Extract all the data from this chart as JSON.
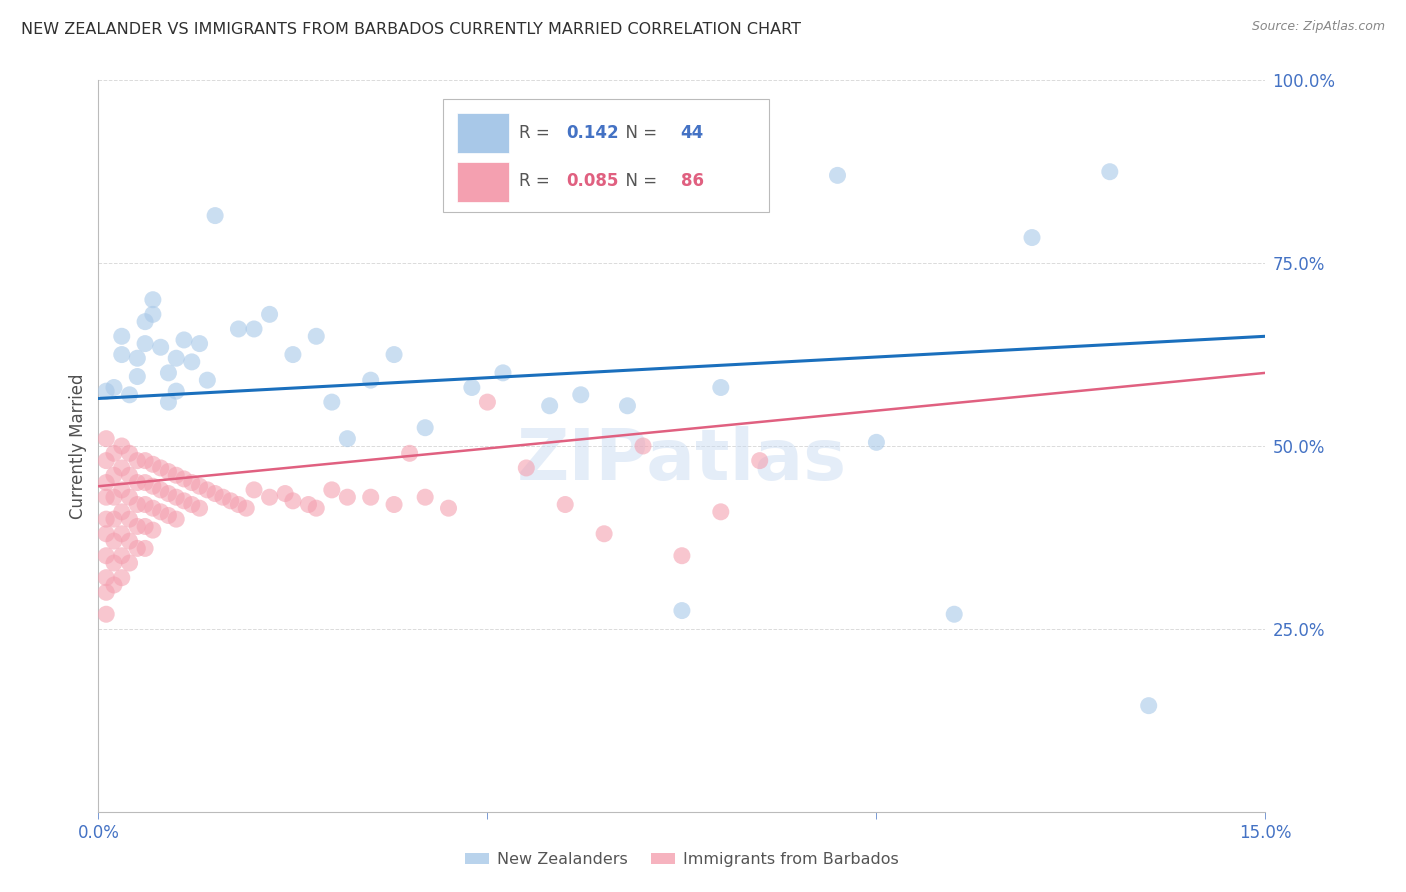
{
  "title": "NEW ZEALANDER VS IMMIGRANTS FROM BARBADOS CURRENTLY MARRIED CORRELATION CHART",
  "source": "Source: ZipAtlas.com",
  "ylabel": "Currently Married",
  "watermark": "ZIPatlas",
  "r_nz": 0.142,
  "n_nz": 44,
  "r_bb": 0.085,
  "n_bb": 86,
  "xmin": 0.0,
  "xmax": 0.15,
  "ymin": 0.0,
  "ymax": 1.0,
  "yticks": [
    0.0,
    0.25,
    0.5,
    0.75,
    1.0
  ],
  "ytick_labels": [
    "",
    "25.0%",
    "50.0%",
    "75.0%",
    "100.0%"
  ],
  "xticks": [
    0.0,
    0.05,
    0.1,
    0.15
  ],
  "xtick_labels": [
    "0.0%",
    "",
    "",
    "15.0%"
  ],
  "color_nz": "#a8c8e8",
  "color_bb": "#f4a0b0",
  "color_trend_nz": "#1a6fbd",
  "color_trend_bb": "#e06080",
  "background_color": "#ffffff",
  "grid_color": "#cccccc",
  "axis_color": "#4472c4",
  "title_color": "#303030",
  "nz_x": [
    0.001,
    0.002,
    0.003,
    0.003,
    0.004,
    0.005,
    0.005,
    0.006,
    0.006,
    0.007,
    0.007,
    0.008,
    0.009,
    0.009,
    0.01,
    0.01,
    0.011,
    0.012,
    0.013,
    0.014,
    0.015,
    0.018,
    0.02,
    0.022,
    0.025,
    0.028,
    0.03,
    0.032,
    0.035,
    0.038,
    0.042,
    0.048,
    0.052,
    0.058,
    0.062,
    0.068,
    0.075,
    0.08,
    0.095,
    0.1,
    0.11,
    0.12,
    0.13,
    0.135
  ],
  "nz_y": [
    0.575,
    0.58,
    0.625,
    0.65,
    0.57,
    0.595,
    0.62,
    0.64,
    0.67,
    0.68,
    0.7,
    0.635,
    0.56,
    0.6,
    0.575,
    0.62,
    0.645,
    0.615,
    0.64,
    0.59,
    0.815,
    0.66,
    0.66,
    0.68,
    0.625,
    0.65,
    0.56,
    0.51,
    0.59,
    0.625,
    0.525,
    0.58,
    0.6,
    0.555,
    0.57,
    0.555,
    0.275,
    0.58,
    0.87,
    0.505,
    0.27,
    0.785,
    0.875,
    0.145
  ],
  "bb_x": [
    0.001,
    0.001,
    0.001,
    0.001,
    0.001,
    0.001,
    0.001,
    0.001,
    0.001,
    0.001,
    0.002,
    0.002,
    0.002,
    0.002,
    0.002,
    0.002,
    0.002,
    0.003,
    0.003,
    0.003,
    0.003,
    0.003,
    0.003,
    0.003,
    0.004,
    0.004,
    0.004,
    0.004,
    0.004,
    0.004,
    0.005,
    0.005,
    0.005,
    0.005,
    0.005,
    0.006,
    0.006,
    0.006,
    0.006,
    0.006,
    0.007,
    0.007,
    0.007,
    0.007,
    0.008,
    0.008,
    0.008,
    0.009,
    0.009,
    0.009,
    0.01,
    0.01,
    0.01,
    0.011,
    0.011,
    0.012,
    0.012,
    0.013,
    0.013,
    0.014,
    0.015,
    0.016,
    0.017,
    0.018,
    0.019,
    0.02,
    0.022,
    0.024,
    0.025,
    0.027,
    0.028,
    0.03,
    0.032,
    0.035,
    0.038,
    0.04,
    0.042,
    0.045,
    0.05,
    0.055,
    0.06,
    0.065,
    0.07,
    0.075,
    0.08,
    0.085
  ],
  "bb_y": [
    0.48,
    0.51,
    0.45,
    0.43,
    0.4,
    0.38,
    0.35,
    0.32,
    0.3,
    0.27,
    0.49,
    0.46,
    0.43,
    0.4,
    0.37,
    0.34,
    0.31,
    0.5,
    0.47,
    0.44,
    0.41,
    0.38,
    0.35,
    0.32,
    0.49,
    0.46,
    0.43,
    0.4,
    0.37,
    0.34,
    0.48,
    0.45,
    0.42,
    0.39,
    0.36,
    0.48,
    0.45,
    0.42,
    0.39,
    0.36,
    0.475,
    0.445,
    0.415,
    0.385,
    0.47,
    0.44,
    0.41,
    0.465,
    0.435,
    0.405,
    0.46,
    0.43,
    0.4,
    0.455,
    0.425,
    0.45,
    0.42,
    0.445,
    0.415,
    0.44,
    0.435,
    0.43,
    0.425,
    0.42,
    0.415,
    0.44,
    0.43,
    0.435,
    0.425,
    0.42,
    0.415,
    0.44,
    0.43,
    0.43,
    0.42,
    0.49,
    0.43,
    0.415,
    0.56,
    0.47,
    0.42,
    0.38,
    0.5,
    0.35,
    0.41,
    0.48
  ]
}
